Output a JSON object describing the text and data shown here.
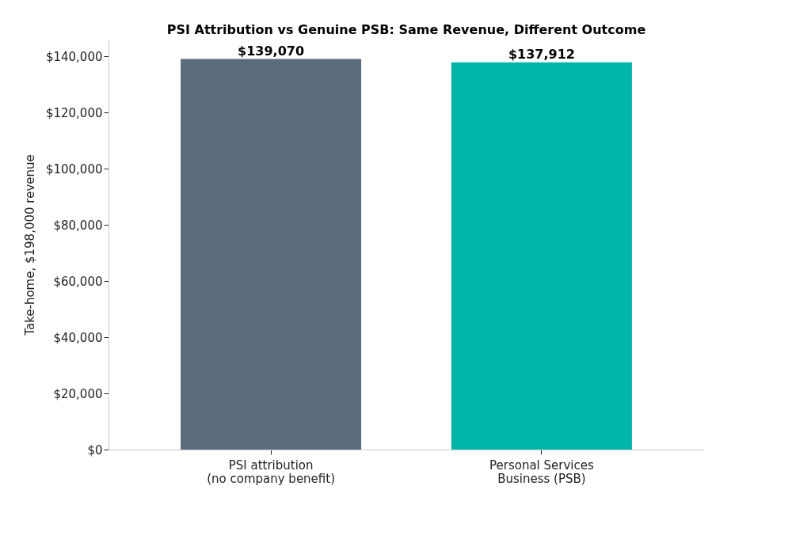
{
  "chart_data": {
    "type": "bar",
    "title": "PSI Attribution vs Genuine PSB: Same Revenue, Different Outcome",
    "ylabel": "Take-home, $198,000 revenue",
    "categories": [
      "PSI attribution\n(no company benefit)",
      "Personal Services\nBusiness (PSB)"
    ],
    "values": [
      139070,
      137912
    ],
    "colors": [
      "#5a6b7d",
      "#00b5a9"
    ],
    "value_labels": [
      "$139,070",
      "$137,912"
    ],
    "ylim": [
      0,
      146000
    ],
    "yticks": [
      {
        "value": 0,
        "label": "$0"
      },
      {
        "value": 20000,
        "label": "$20,000"
      },
      {
        "value": 40000,
        "label": "$40,000"
      },
      {
        "value": 60000,
        "label": "$60,000"
      },
      {
        "value": 80000,
        "label": "$80,000"
      },
      {
        "value": 100000,
        "label": "$100,000"
      },
      {
        "value": 120000,
        "label": "$120,000"
      },
      {
        "value": 140000,
        "label": "$140,000"
      }
    ],
    "grid": false
  }
}
